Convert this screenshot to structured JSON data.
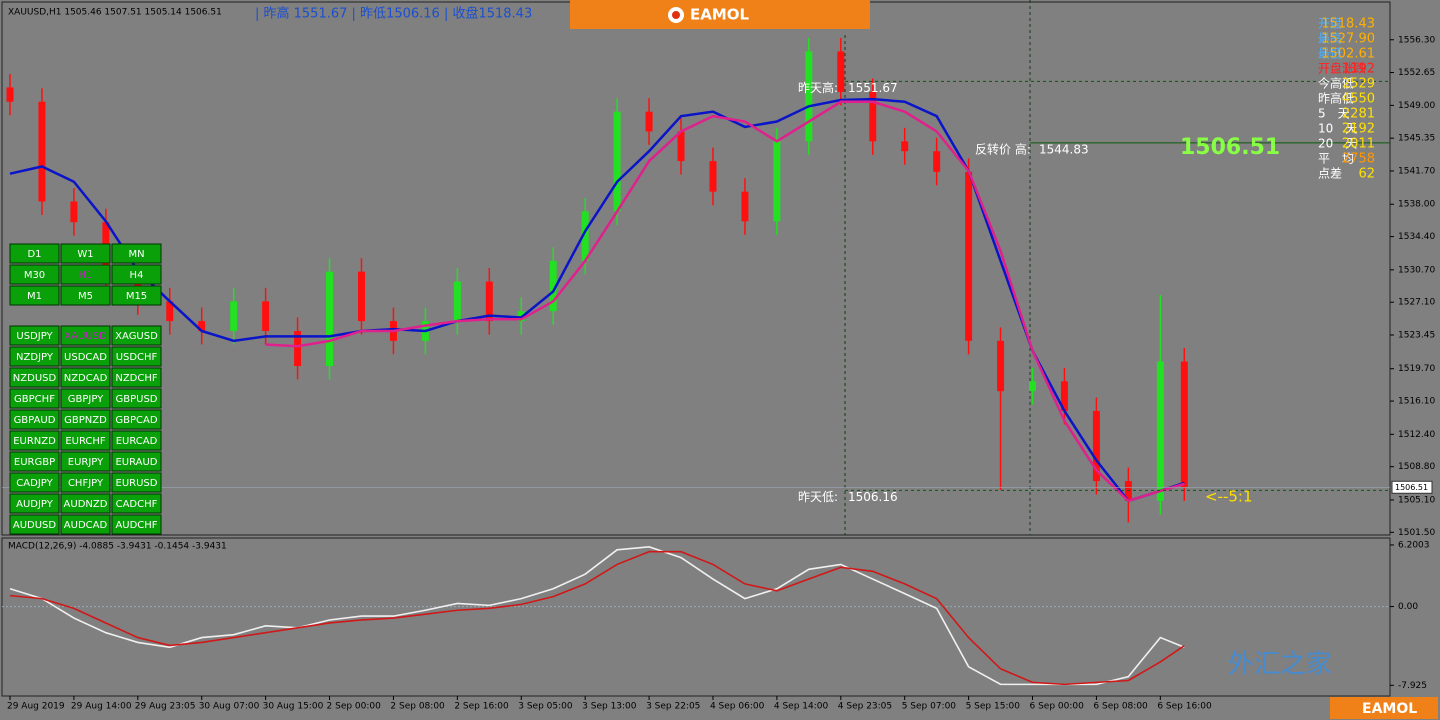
{
  "header": {
    "symbol_info": "XAUUSD,H1  1505.46 1507.51 1505.14 1506.51",
    "daily_info": "| 昨高 1551.67 | 昨低1506.16 | 收盘1518.43",
    "brand": "EAMOL"
  },
  "info_panel": {
    "rows": [
      {
        "label": "开盘",
        "value": "1518.43",
        "color": "#ffb000"
      },
      {
        "label": "最高",
        "value": "1527.90",
        "color": "#ffb000"
      },
      {
        "label": "最低",
        "value": "1502.61",
        "color": "#ffb000"
      },
      {
        "label": "开盘涨跌",
        "value": "1192",
        "color": "#ff2020"
      },
      {
        "label": "今高低",
        "value": "2529",
        "color": "#ffe000"
      },
      {
        "label": "昨高低",
        "value": "4550",
        "color": "#ffe000"
      },
      {
        "label": "5　天",
        "value": "2281",
        "color": "#ffe000"
      },
      {
        "label": "10　天",
        "value": "2192",
        "color": "#ffe000"
      },
      {
        "label": "20　天",
        "value": "2011",
        "color": "#ffe000"
      },
      {
        "label": "平　均",
        "value": "2758",
        "color": "#ff9900"
      },
      {
        "label": "点差",
        "value": "62",
        "color": "#ffe000"
      }
    ],
    "price": "1506.51"
  },
  "timeframe_buttons": [
    [
      "D1",
      "W1",
      "MN"
    ],
    [
      "M30",
      "H1",
      "H4"
    ],
    [
      "M1",
      "M5",
      "M15"
    ]
  ],
  "symbol_buttons": [
    [
      "USDJPY",
      "XAUUSD",
      "XAGUSD"
    ],
    [
      "NZDJPY",
      "USDCAD",
      "USDCHF"
    ],
    [
      "NZDUSD",
      "NZDCAD",
      "NZDCHF"
    ],
    [
      "GBPCHF",
      "GBPJPY",
      "GBPUSD"
    ],
    [
      "GBPAUD",
      "GBPNZD",
      "GBPCAD"
    ],
    [
      "EURNZD",
      "EURCHF",
      "EURCAD"
    ],
    [
      "EURGBP",
      "EURJPY",
      "EURAUD"
    ],
    [
      "CADJPY",
      "CHFJPY",
      "EURUSD"
    ],
    [
      "AUDJPY",
      "AUDNZD",
      "CADCHF"
    ],
    [
      "AUDUSD",
      "AUDCAD",
      "AUDCHF"
    ]
  ],
  "ratio_note": "<--5:1",
  "watermark": {
    "text": "外汇之家",
    "brand": "EAMOL"
  },
  "chart_data": [
    {
      "type": "candlestick",
      "title": "XAUUSD,H1",
      "x": [
        0,
        4,
        8,
        12,
        16,
        20,
        24,
        28,
        32,
        36,
        40,
        44,
        48,
        52,
        56,
        60,
        64,
        68,
        72,
        76,
        80,
        84,
        88,
        92,
        96,
        100,
        104,
        108,
        112,
        116,
        120,
        124,
        128,
        132,
        136,
        140,
        144,
        147
      ],
      "open": [
        1551.0,
        1549.4,
        1538.3,
        1536.0,
        1529.4,
        1527.2,
        1525.0,
        1523.9,
        1527.2,
        1523.9,
        1520.0,
        1530.5,
        1525.0,
        1522.8,
        1525.0,
        1529.4,
        1525.0,
        1526.1,
        1531.7,
        1537.2,
        1548.3,
        1546.1,
        1542.8,
        1539.4,
        1536.1,
        1545.0,
        1555.0,
        1550.5,
        1545.0,
        1543.9,
        1541.6,
        1522.8,
        1517.2,
        1518.3,
        1515.0,
        1507.2,
        1505.0,
        1520.5
      ],
      "high": [
        1552.5,
        1550.9,
        1539.8,
        1537.5,
        1530.9,
        1528.7,
        1526.5,
        1528.7,
        1528.7,
        1525.4,
        1532.0,
        1532.0,
        1526.5,
        1526.5,
        1530.9,
        1530.9,
        1527.6,
        1533.2,
        1538.7,
        1549.8,
        1549.8,
        1547.6,
        1544.3,
        1540.9,
        1546.5,
        1556.5,
        1556.5,
        1552.0,
        1546.5,
        1545.4,
        1543.1,
        1524.3,
        1519.8,
        1519.8,
        1516.5,
        1508.7,
        1527.9,
        1522.0
      ],
      "low": [
        1547.9,
        1536.8,
        1534.5,
        1527.9,
        1525.7,
        1523.5,
        1522.4,
        1522.4,
        1522.4,
        1518.5,
        1518.5,
        1523.5,
        1521.3,
        1521.3,
        1523.5,
        1523.5,
        1523.5,
        1524.6,
        1530.2,
        1535.7,
        1544.6,
        1541.3,
        1537.9,
        1534.6,
        1534.6,
        1543.5,
        1549.0,
        1543.5,
        1542.4,
        1540.1,
        1521.3,
        1506.2,
        1515.7,
        1513.5,
        1505.7,
        1502.6,
        1503.5,
        1505.0
      ],
      "close": [
        1549.4,
        1538.3,
        1536.0,
        1529.4,
        1527.2,
        1525.0,
        1523.9,
        1527.2,
        1523.9,
        1520.0,
        1530.5,
        1525.0,
        1522.8,
        1525.0,
        1529.4,
        1525.0,
        1526.1,
        1531.7,
        1537.2,
        1548.3,
        1546.1,
        1542.8,
        1539.4,
        1536.1,
        1545.0,
        1555.0,
        1550.5,
        1545.0,
        1543.9,
        1541.6,
        1522.8,
        1517.2,
        1518.3,
        1515.0,
        1507.2,
        1505.0,
        1520.5,
        1506.51
      ],
      "up_color": "#22e022",
      "down_color": "#ff1010",
      "series": [
        {
          "color": "#0a14c8",
          "values": [
            1541.4,
            1542.2,
            1540.5,
            1536.1,
            1530.6,
            1527.2,
            1523.9,
            1522.8,
            1523.3,
            1523.3,
            1523.3,
            1523.9,
            1524.1,
            1523.9,
            1525.0,
            1525.6,
            1525.4,
            1528.3,
            1535.0,
            1540.5,
            1543.9,
            1547.8,
            1548.3,
            1546.6,
            1547.2,
            1548.9,
            1549.6,
            1549.7,
            1549.4,
            1547.8,
            1541.7,
            1531.7,
            1521.7,
            1515.0,
            1509.5,
            1505.0,
            1506.1,
            1507.0
          ]
        },
        {
          "color": "#e0208c",
          "values": [
            null,
            null,
            null,
            null,
            null,
            null,
            null,
            null,
            1522.4,
            1522.2,
            1522.8,
            1523.9,
            1523.9,
            1524.5,
            1525.0,
            1525.2,
            1525.2,
            1527.2,
            1531.7,
            1537.2,
            1542.8,
            1546.1,
            1547.8,
            1547.2,
            1545.0,
            1547.2,
            1549.4,
            1549.4,
            1548.3,
            1546.1,
            1541.7,
            1532.8,
            1521.7,
            1513.9,
            1508.4,
            1505.0,
            1506.1,
            1506.9
          ]
        }
      ],
      "annotations": [
        {
          "label": "昨天高:",
          "value": 1551.67
        },
        {
          "label": "反转价 高:",
          "value": 1544.83
        },
        {
          "label": "昨天低:",
          "value": 1506.16
        }
      ],
      "last_price": 1506.51,
      "xlim": [
        -1,
        172.75
      ],
      "xticks": [
        {
          "value": 0,
          "label": "29 Aug 2019"
        },
        {
          "value": 8,
          "label": "29 Aug 14:00"
        },
        {
          "value": 16,
          "label": "29 Aug 23:05"
        },
        {
          "value": 24,
          "label": "30 Aug 07:00"
        },
        {
          "value": 32,
          "label": "30 Aug 15:00"
        },
        {
          "value": 40,
          "label": "2 Sep 00:00"
        },
        {
          "value": 48,
          "label": "2 Sep 08:00"
        },
        {
          "value": 56,
          "label": "2 Sep 16:00"
        },
        {
          "value": 64,
          "label": "3 Sep 05:00"
        },
        {
          "value": 72,
          "label": "3 Sep 13:00"
        },
        {
          "value": 80,
          "label": "3 Sep 22:05"
        },
        {
          "value": 88,
          "label": "4 Sep 06:00"
        },
        {
          "value": 96,
          "label": "4 Sep 14:00"
        },
        {
          "value": 104,
          "label": "4 Sep 23:05"
        },
        {
          "value": 112,
          "label": "5 Sep 07:00"
        },
        {
          "value": 120,
          "label": "5 Sep 15:00"
        },
        {
          "value": 128,
          "label": "6 Sep 00:00"
        },
        {
          "value": 136,
          "label": "6 Sep 08:00"
        },
        {
          "value": 144,
          "label": "6 Sep 16:00"
        }
      ],
      "ylim": [
        1501.2,
        1560.5
      ],
      "yticks": [
        {
          "value": 1556.3,
          "label": "1556.30"
        },
        1552.65,
        {
          "value": 1549.0,
          "label": "1549.00"
        },
        1545.35,
        {
          "value": 1541.7,
          "label": "1541.70"
        },
        {
          "value": 1538.0,
          "label": "1538.00"
        },
        {
          "value": 1534.4,
          "label": "1534.40"
        },
        {
          "value": 1530.7,
          "label": "1530.70"
        },
        {
          "value": 1527.1,
          "label": "1527.10"
        },
        1523.45,
        {
          "value": 1519.7,
          "label": "1519.70"
        },
        {
          "value": 1516.1,
          "label": "1516.10"
        },
        {
          "value": 1512.4,
          "label": "1512.40"
        },
        {
          "value": 1508.8,
          "label": "1508.80"
        },
        {
          "value": 1505.1,
          "label": "1505.10"
        },
        {
          "value": 1501.5,
          "label": "1501.50"
        }
      ]
    },
    {
      "type": "line",
      "title": "MACD(12,26,9) -4.0885 -3.9431 -0.1454 -3.9431",
      "x": [
        0,
        4,
        8,
        12,
        16,
        20,
        24,
        28,
        32,
        36,
        40,
        44,
        48,
        52,
        56,
        60,
        64,
        68,
        72,
        76,
        80,
        84,
        88,
        92,
        96,
        100,
        104,
        108,
        112,
        116,
        120,
        124,
        128,
        132,
        136,
        140,
        144,
        147
      ],
      "series": [
        {
          "color": "#f0f0f0",
          "values": [
            1.79,
            0.8,
            -1.16,
            -2.63,
            -3.61,
            -4.1,
            -3.12,
            -2.83,
            -1.94,
            -2.14,
            -1.35,
            -0.96,
            -0.96,
            -0.37,
            0.31,
            0.12,
            0.8,
            1.79,
            3.26,
            5.71,
            6.01,
            4.93,
            2.77,
            0.8,
            1.79,
            3.75,
            4.24,
            2.77,
            1.3,
            -0.18,
            -6.06,
            -7.83,
            -7.83,
            -7.83,
            -7.83,
            -7.05,
            -3.12,
            -4.09
          ]
        },
        {
          "color": "#d01818",
          "values": [
            1.1,
            0.8,
            -0.18,
            -1.65,
            -3.12,
            -3.91,
            -3.61,
            -3.12,
            -2.63,
            -2.14,
            -1.65,
            -1.35,
            -1.16,
            -0.77,
            -0.37,
            -0.18,
            0.22,
            1.0,
            2.28,
            4.24,
            5.52,
            5.52,
            4.24,
            2.28,
            1.59,
            2.77,
            3.95,
            3.55,
            2.28,
            0.8,
            -3.12,
            -6.26,
            -7.63,
            -7.83,
            -7.63,
            -7.44,
            -5.57,
            -3.94
          ]
        }
      ],
      "xlim": [
        -1,
        172.75
      ],
      "ylim": [
        -9.0,
        6.9
      ],
      "yticks": [
        6.2003,
        {
          "value": 0,
          "label": "0.00"
        },
        -7.925
      ]
    }
  ]
}
